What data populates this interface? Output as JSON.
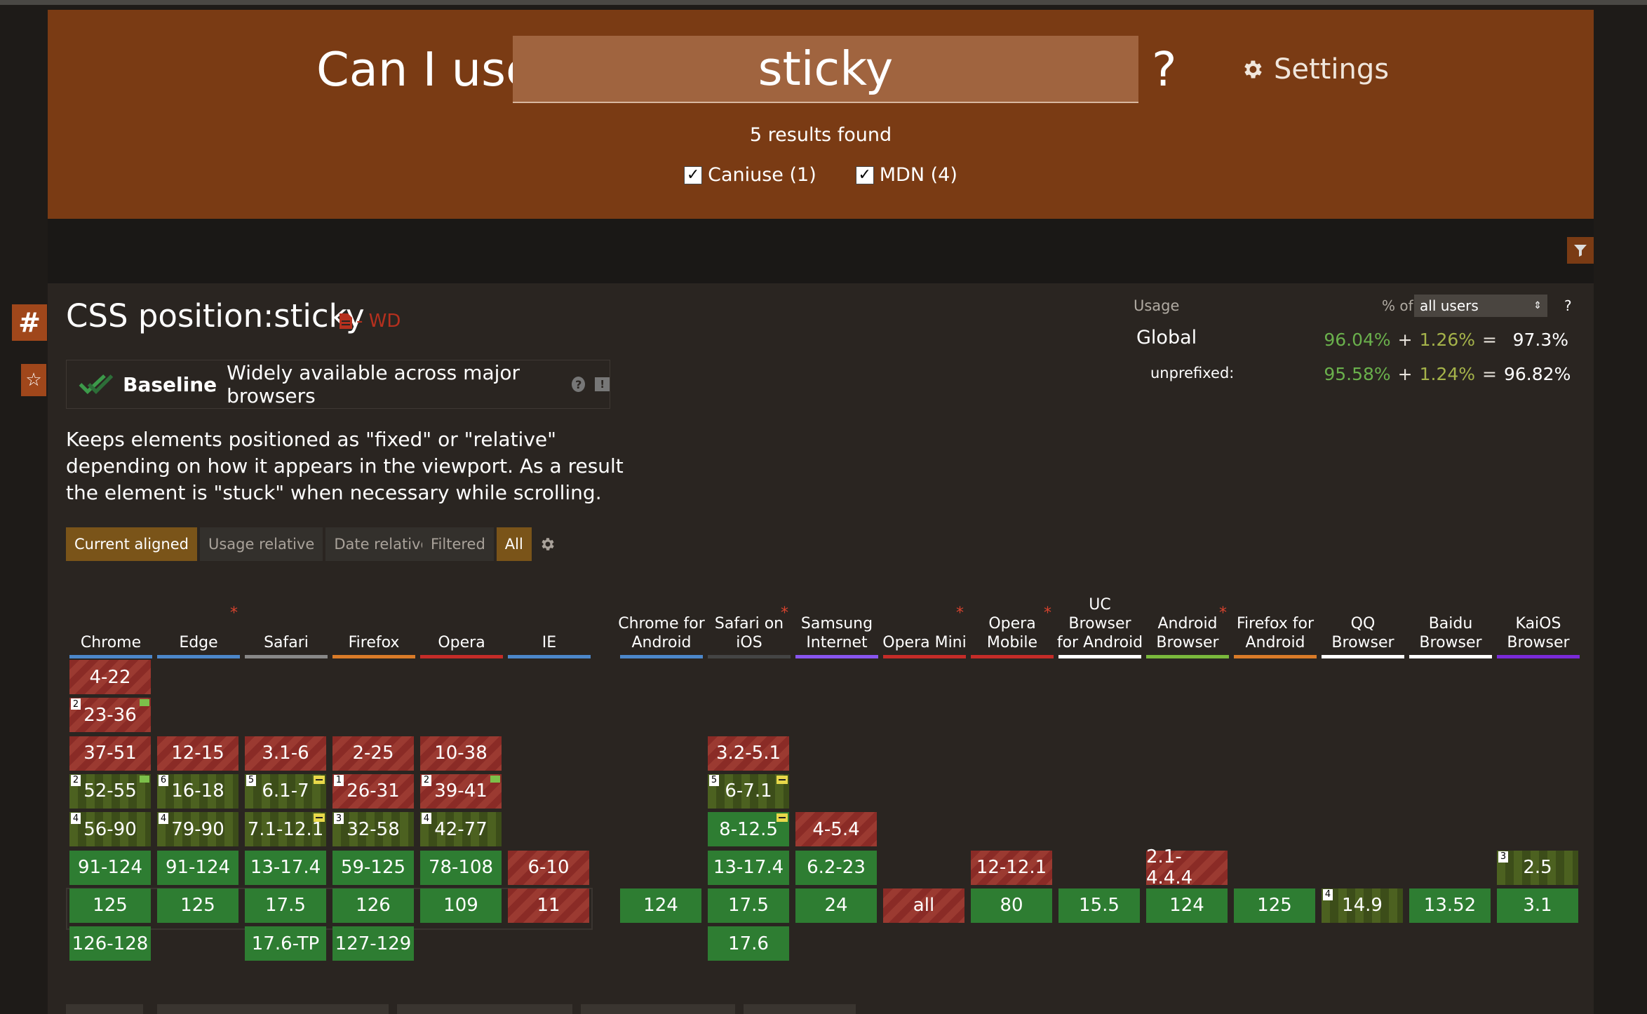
{
  "header": {
    "can_i_use": "Can I use",
    "query": "sticky",
    "question": "?",
    "settings_label": "Settings",
    "results": "5 results found",
    "filters": [
      {
        "label": "Caniuse (1)",
        "checked": true
      },
      {
        "label": "MDN (4)",
        "checked": true
      }
    ]
  },
  "side": {
    "hash": "#",
    "star": "☆"
  },
  "feature": {
    "title": "CSS position:sticky",
    "status": "- WD",
    "baseline_label": "Baseline",
    "baseline_text": "Widely available across major browsers",
    "description": "Keeps elements positioned as \"fixed\" or \"relative\" depending on how it appears in the viewport. As a result the element is \"stuck\" when necessary while scrolling."
  },
  "usage": {
    "label": "Usage",
    "of_label": "% of",
    "select_value": "all users",
    "help": "?",
    "global_label": "Global",
    "global": {
      "full": "96.04%",
      "partial": "1.26%",
      "total": "97.3%"
    },
    "unprefixed_label": "unprefixed:",
    "unprefixed": {
      "full": "95.58%",
      "partial": "1.24%",
      "total": "96.82%"
    }
  },
  "tabs": [
    {
      "label": "Current aligned",
      "active": true
    },
    {
      "label": "Usage relative",
      "active": false
    },
    {
      "label": "Date relative",
      "active": false
    }
  ],
  "filter_tabs": [
    {
      "label": "Filtered",
      "active": false
    },
    {
      "label": "All",
      "active": true
    }
  ],
  "browsers": [
    {
      "name": "Chrome",
      "color": "#4c87c9",
      "star": false
    },
    {
      "name": "Edge",
      "color": "#4c87c9",
      "star": true
    },
    {
      "name": "Safari",
      "color": "#888888",
      "star": false
    },
    {
      "name": "Firefox",
      "color": "#d97b28",
      "star": false
    },
    {
      "name": "Opera",
      "color": "#c42c28",
      "star": false
    },
    {
      "name": "IE",
      "color": "#4c87c9",
      "star": false
    },
    {
      "name": "Chrome for Android",
      "color": "#4c87c9",
      "star": false
    },
    {
      "name": "Safari on iOS",
      "color": "#444444",
      "star": true
    },
    {
      "name": "Samsung Internet",
      "color": "#8855ee",
      "star": false
    },
    {
      "name": "Opera Mini",
      "color": "#c42c28",
      "star": true
    },
    {
      "name": "Opera Mobile",
      "color": "#c42c28",
      "star": true
    },
    {
      "name": "UC Browser for Android",
      "color": "#ffffff",
      "star": false
    },
    {
      "name": "Android Browser",
      "color": "#7ab83c",
      "star": true
    },
    {
      "name": "Firefox for Android",
      "color": "#d97b28",
      "star": false
    },
    {
      "name": "QQ Browser",
      "color": "#ffffff",
      "star": false
    },
    {
      "name": "Baidu Browser",
      "color": "#ffffff",
      "star": false
    },
    {
      "name": "KaiOS Browser",
      "color": "#7a2ad8",
      "star": false
    }
  ],
  "cells": [
    {
      "col": 0,
      "row": 0,
      "label": "4-22",
      "support": "n"
    },
    {
      "col": 0,
      "row": 1,
      "label": "23-36",
      "support": "n",
      "note": "2",
      "flag": true
    },
    {
      "col": 0,
      "row": 2,
      "label": "37-51",
      "support": "n"
    },
    {
      "col": 0,
      "row": 3,
      "label": "52-55",
      "support": "a",
      "note": "2",
      "flag": true
    },
    {
      "col": 0,
      "row": 4,
      "label": "56-90",
      "support": "a",
      "note": "4"
    },
    {
      "col": 0,
      "row": 5,
      "label": "91-124",
      "support": "y"
    },
    {
      "col": 0,
      "row": 6,
      "label": "125",
      "support": "y"
    },
    {
      "col": 0,
      "row": 7,
      "label": "126-128",
      "support": "y"
    },
    {
      "col": 1,
      "row": 2,
      "label": "12-15",
      "support": "n"
    },
    {
      "col": 1,
      "row": 3,
      "label": "16-18",
      "support": "a",
      "note": "6"
    },
    {
      "col": 1,
      "row": 4,
      "label": "79-90",
      "support": "a",
      "note": "4"
    },
    {
      "col": 1,
      "row": 5,
      "label": "91-124",
      "support": "y"
    },
    {
      "col": 1,
      "row": 6,
      "label": "125",
      "support": "y"
    },
    {
      "col": 2,
      "row": 2,
      "label": "3.1-6",
      "support": "n"
    },
    {
      "col": 2,
      "row": 3,
      "label": "6.1-7",
      "support": "a",
      "note": "5",
      "prefix": true
    },
    {
      "col": 2,
      "row": 4,
      "label": "7.1-12.1",
      "support": "a",
      "prefix": true
    },
    {
      "col": 2,
      "row": 5,
      "label": "13-17.4",
      "support": "y"
    },
    {
      "col": 2,
      "row": 6,
      "label": "17.5",
      "support": "y"
    },
    {
      "col": 2,
      "row": 7,
      "label": "17.6-TP",
      "support": "y"
    },
    {
      "col": 3,
      "row": 2,
      "label": "2-25",
      "support": "n"
    },
    {
      "col": 3,
      "row": 3,
      "label": "26-31",
      "support": "n",
      "note": "1"
    },
    {
      "col": 3,
      "row": 4,
      "label": "32-58",
      "support": "a",
      "note": "3"
    },
    {
      "col": 3,
      "row": 5,
      "label": "59-125",
      "support": "y"
    },
    {
      "col": 3,
      "row": 6,
      "label": "126",
      "support": "y"
    },
    {
      "col": 3,
      "row": 7,
      "label": "127-129",
      "support": "y"
    },
    {
      "col": 4,
      "row": 2,
      "label": "10-38",
      "support": "n"
    },
    {
      "col": 4,
      "row": 3,
      "label": "39-41",
      "support": "n",
      "note": "2",
      "flag": true
    },
    {
      "col": 4,
      "row": 4,
      "label": "42-77",
      "support": "a",
      "note": "4"
    },
    {
      "col": 4,
      "row": 5,
      "label": "78-108",
      "support": "y"
    },
    {
      "col": 4,
      "row": 6,
      "label": "109",
      "support": "y"
    },
    {
      "col": 5,
      "row": 5,
      "label": "6-10",
      "support": "n"
    },
    {
      "col": 5,
      "row": 6,
      "label": "11",
      "support": "n"
    },
    {
      "col": 6,
      "row": 6,
      "label": "124",
      "support": "y"
    },
    {
      "col": 7,
      "row": 2,
      "label": "3.2-5.1",
      "support": "n"
    },
    {
      "col": 7,
      "row": 3,
      "label": "6-7.1",
      "support": "a",
      "note": "5",
      "prefix": true
    },
    {
      "col": 7,
      "row": 4,
      "label": "8-12.5",
      "support": "y",
      "prefix": true
    },
    {
      "col": 7,
      "row": 5,
      "label": "13-17.4",
      "support": "y"
    },
    {
      "col": 7,
      "row": 6,
      "label": "17.5",
      "support": "y"
    },
    {
      "col": 7,
      "row": 7,
      "label": "17.6",
      "support": "y"
    },
    {
      "col": 8,
      "row": 4,
      "label": "4-5.4",
      "support": "n"
    },
    {
      "col": 8,
      "row": 5,
      "label": "6.2-23",
      "support": "y"
    },
    {
      "col": 8,
      "row": 6,
      "label": "24",
      "support": "y"
    },
    {
      "col": 9,
      "row": 6,
      "label": "all",
      "support": "n"
    },
    {
      "col": 10,
      "row": 5,
      "label": "12-12.1",
      "support": "n"
    },
    {
      "col": 10,
      "row": 6,
      "label": "80",
      "support": "y"
    },
    {
      "col": 11,
      "row": 6,
      "label": "15.5",
      "support": "y"
    },
    {
      "col": 12,
      "row": 5,
      "label": "2.1-4.4.4",
      "support": "n"
    },
    {
      "col": 12,
      "row": 6,
      "label": "124",
      "support": "y"
    },
    {
      "col": 13,
      "row": 6,
      "label": "125",
      "support": "y"
    },
    {
      "col": 14,
      "row": 6,
      "label": "14.9",
      "support": "a",
      "note": "4"
    },
    {
      "col": 15,
      "row": 6,
      "label": "13.52",
      "support": "y"
    },
    {
      "col": 16,
      "row": 5,
      "label": "2.5",
      "support": "a",
      "note": "3"
    },
    {
      "col": 16,
      "row": 6,
      "label": "3.1",
      "support": "y"
    }
  ]
}
